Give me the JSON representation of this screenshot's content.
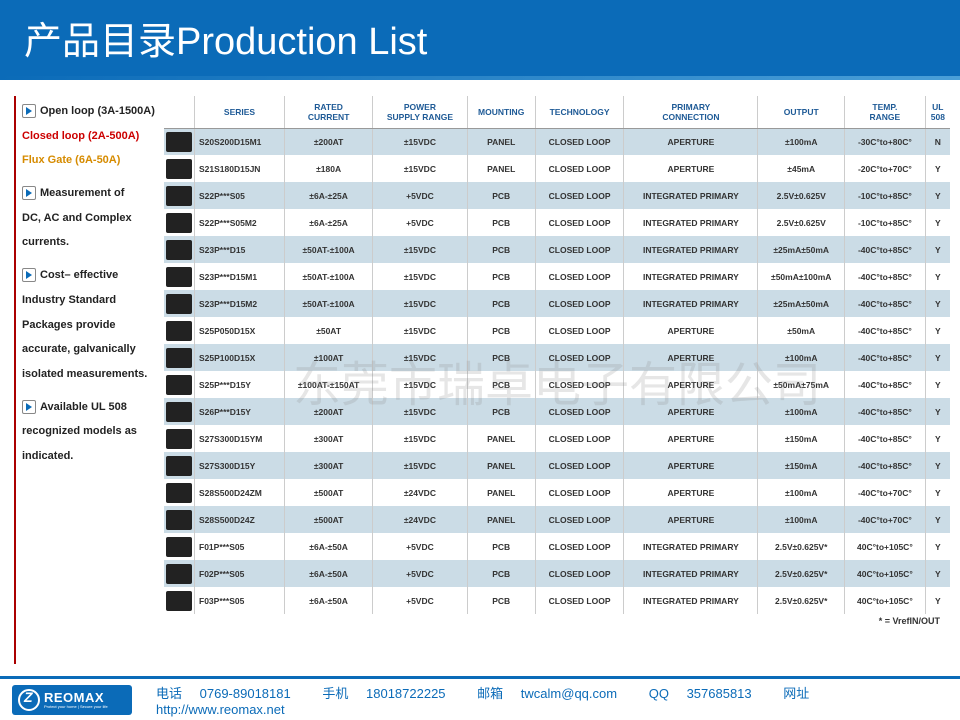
{
  "header": {
    "title": "产品目录Production List"
  },
  "sidebar": {
    "sec1": {
      "l1": "Open loop (3A-1500A)",
      "l2": "Closed loop (2A-500A)",
      "l3": "Flux Gate (6A-50A)"
    },
    "sec2": {
      "l1": "Measurement of",
      "l2": "DC, AC and Complex",
      "l3": "currents."
    },
    "sec3": {
      "l1": "Cost– effective",
      "l2": "Industry Standard",
      "l3": "Packages provide",
      "l4": "accurate, galvanically",
      "l5": "isolated measurements."
    },
    "sec4": {
      "l1": "Available UL 508",
      "l2": "recognized models as",
      "l3": "indicated."
    }
  },
  "columns": [
    "",
    "SERIES",
    "RATED CURRENT",
    "POWER SUPPLY RANGE",
    "MOUNTING",
    "TECHNOLOGY",
    "PRIMARY CONNECTION",
    "OUTPUT",
    "TEMP. RANGE",
    "UL 508"
  ],
  "rows": [
    {
      "series": "S20S200D15M1",
      "rated": "±200AT",
      "psu": "±15VDC",
      "mount": "PANEL",
      "tech": "CLOSED LOOP",
      "pri": "APERTURE",
      "out": "±100mA",
      "temp": "-30C°to+80C°",
      "ul": "N"
    },
    {
      "series": "S21S180D15JN",
      "rated": "±180A",
      "psu": "±15VDC",
      "mount": "PANEL",
      "tech": "CLOSED LOOP",
      "pri": "APERTURE",
      "out": "±45mA",
      "temp": "-20C°to+70C°",
      "ul": "Y"
    },
    {
      "series": "S22P***S05",
      "rated": "±6A-±25A",
      "psu": "+5VDC",
      "mount": "PCB",
      "tech": "CLOSED LOOP",
      "pri": "INTEGRATED PRIMARY",
      "out": "2.5V±0.625V",
      "temp": "-10C°to+85C°",
      "ul": "Y"
    },
    {
      "series": "S22P***S05M2",
      "rated": "±6A-±25A",
      "psu": "+5VDC",
      "mount": "PCB",
      "tech": "CLOSED LOOP",
      "pri": "INTEGRATED PRIMARY",
      "out": "2.5V±0.625V",
      "temp": "-10C°to+85C°",
      "ul": "Y"
    },
    {
      "series": "S23P***D15",
      "rated": "±50AT-±100A",
      "psu": "±15VDC",
      "mount": "PCB",
      "tech": "CLOSED LOOP",
      "pri": "INTEGRATED PRIMARY",
      "out": "±25mA±50mA",
      "temp": "-40C°to+85C°",
      "ul": "Y"
    },
    {
      "series": "S23P***D15M1",
      "rated": "±50AT-±100A",
      "psu": "±15VDC",
      "mount": "PCB",
      "tech": "CLOSED LOOP",
      "pri": "INTEGRATED PRIMARY",
      "out": "±50mA±100mA",
      "temp": "-40C°to+85C°",
      "ul": "Y"
    },
    {
      "series": "S23P***D15M2",
      "rated": "±50AT-±100A",
      "psu": "±15VDC",
      "mount": "PCB",
      "tech": "CLOSED LOOP",
      "pri": "INTEGRATED PRIMARY",
      "out": "±25mA±50mA",
      "temp": "-40C°to+85C°",
      "ul": "Y"
    },
    {
      "series": "S25P050D15X",
      "rated": "±50AT",
      "psu": "±15VDC",
      "mount": "PCB",
      "tech": "CLOSED LOOP",
      "pri": "APERTURE",
      "out": "±50mA",
      "temp": "-40C°to+85C°",
      "ul": "Y"
    },
    {
      "series": "S25P100D15X",
      "rated": "±100AT",
      "psu": "±15VDC",
      "mount": "PCB",
      "tech": "CLOSED LOOP",
      "pri": "APERTURE",
      "out": "±100mA",
      "temp": "-40C°to+85C°",
      "ul": "Y"
    },
    {
      "series": "S25P***D15Y",
      "rated": "±100AT-±150AT",
      "psu": "±15VDC",
      "mount": "PCB",
      "tech": "CLOSED LOOP",
      "pri": "APERTURE",
      "out": "±50mA±75mA",
      "temp": "-40C°to+85C°",
      "ul": "Y"
    },
    {
      "series": "S26P***D15Y",
      "rated": "±200AT",
      "psu": "±15VDC",
      "mount": "PCB",
      "tech": "CLOSED LOOP",
      "pri": "APERTURE",
      "out": "±100mA",
      "temp": "-40C°to+85C°",
      "ul": "Y"
    },
    {
      "series": "S27S300D15YM",
      "rated": "±300AT",
      "psu": "±15VDC",
      "mount": "PANEL",
      "tech": "CLOSED LOOP",
      "pri": "APERTURE",
      "out": "±150mA",
      "temp": "-40C°to+85C°",
      "ul": "Y"
    },
    {
      "series": "S27S300D15Y",
      "rated": "±300AT",
      "psu": "±15VDC",
      "mount": "PANEL",
      "tech": "CLOSED LOOP",
      "pri": "APERTURE",
      "out": "±150mA",
      "temp": "-40C°to+85C°",
      "ul": "Y"
    },
    {
      "series": "S28S500D24ZM",
      "rated": "±500AT",
      "psu": "±24VDC",
      "mount": "PANEL",
      "tech": "CLOSED LOOP",
      "pri": "APERTURE",
      "out": "±100mA",
      "temp": "-40C°to+70C°",
      "ul": "Y"
    },
    {
      "series": "S28S500D24Z",
      "rated": "±500AT",
      "psu": "±24VDC",
      "mount": "PANEL",
      "tech": "CLOSED LOOP",
      "pri": "APERTURE",
      "out": "±100mA",
      "temp": "-40C°to+70C°",
      "ul": "Y"
    },
    {
      "series": "F01P***S05",
      "rated": "±6A-±50A",
      "psu": "+5VDC",
      "mount": "PCB",
      "tech": "CLOSED LOOP",
      "pri": "INTEGRATED PRIMARY",
      "out": "2.5V±0.625V*",
      "temp": "40C°to+105C°",
      "ul": "Y"
    },
    {
      "series": "F02P***S05",
      "rated": "±6A-±50A",
      "psu": "+5VDC",
      "mount": "PCB",
      "tech": "CLOSED LOOP",
      "pri": "INTEGRATED PRIMARY",
      "out": "2.5V±0.625V*",
      "temp": "40C°to+105C°",
      "ul": "Y"
    },
    {
      "series": "F03P***S05",
      "rated": "±6A-±50A",
      "psu": "+5VDC",
      "mount": "PCB",
      "tech": "CLOSED LOOP",
      "pri": "INTEGRATED PRIMARY",
      "out": "2.5V±0.625V*",
      "temp": "40C°to+105C°",
      "ul": "Y"
    }
  ],
  "footnote": "* = VrefIN/OUT",
  "watermark": "东莞市瑞卓电子有限公司",
  "footer": {
    "logo": "REOMAX",
    "logo_sub": "Protect your home | Secure your life",
    "phone_label": "电话",
    "phone": "0769-89018181",
    "mobile_label": "手机",
    "mobile": "18018722225",
    "email_label": "邮箱",
    "email": "twcalm@qq.com",
    "qq_label": "QQ",
    "qq": "357685813",
    "web_label": "网址",
    "web": "http://www.reomax.net"
  },
  "colors": {
    "header_bg": "#0b6bb8",
    "odd_row": "#cbdce6",
    "th_color": "#1e5a96",
    "footer_border": "#0b6bb8",
    "red": "#c00",
    "orange": "#d68b00"
  }
}
